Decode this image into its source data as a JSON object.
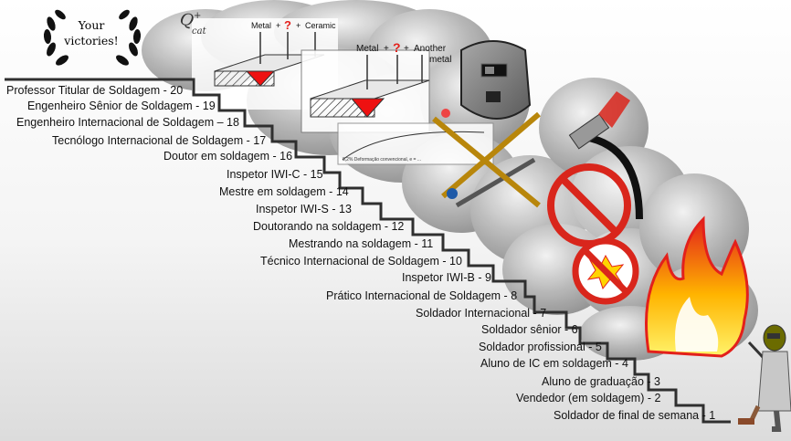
{
  "badge": {
    "line1": "Your",
    "line2": "victories!"
  },
  "steps": [
    {
      "label": "Professor Titular de Soldagem - 20"
    },
    {
      "label": "Engenheiro Sênior de Soldagem - 19"
    },
    {
      "label": "Engenheiro Internacional de Soldagem – 18"
    },
    {
      "label": "Tecnólogo Internacional de Soldagem - 17"
    },
    {
      "label": "Doutor em soldagem - 16"
    },
    {
      "label": "Inspetor IWI-C - 15"
    },
    {
      "label": "Mestre em soldagem - 14"
    },
    {
      "label": "Inspetor IWI-S - 13"
    },
    {
      "label": "Doutorando na soldagem - 12"
    },
    {
      "label": "Mestrando na soldagem - 11"
    },
    {
      "label": "Técnico Internacional de Soldagem - 10"
    },
    {
      "label": "Inspetor IWI-B - 9"
    },
    {
      "label": "Prático Internacional de Soldagem - 8"
    },
    {
      "label": "Soldador Internacional - 7"
    },
    {
      "label": "Soldador sênior - 6"
    },
    {
      "label": "Soldador profissional  - 5"
    },
    {
      "label": "Aluno de IC em soldagem  - 4"
    },
    {
      "label": "Aluno de graduação - 3"
    },
    {
      "label": "Vendedor (em soldagem) - 2"
    },
    {
      "label": "Soldador de final de semana - 1"
    }
  ],
  "sketch1": {
    "metal": "Metal",
    "plus1": "+",
    "q": "?",
    "plus2": "+",
    "ceramic": "Ceramic"
  },
  "sketch2": {
    "metal": "Metal",
    "plus1": "+",
    "q": "?",
    "plus2": "+",
    "another": "Another",
    "metal2": "metal"
  },
  "formula": {
    "q": "Q",
    "sup": "+",
    "sub": "cat"
  },
  "graph": {
    "caption": "0,2%   Deformação convencional, e = ..."
  },
  "colors": {
    "stair": "#2f2f2f",
    "smoke": "#9a9a9a",
    "flame_red": "#e3201b",
    "flame_yellow": "#ffd400",
    "prohibit": "#d9261c"
  }
}
